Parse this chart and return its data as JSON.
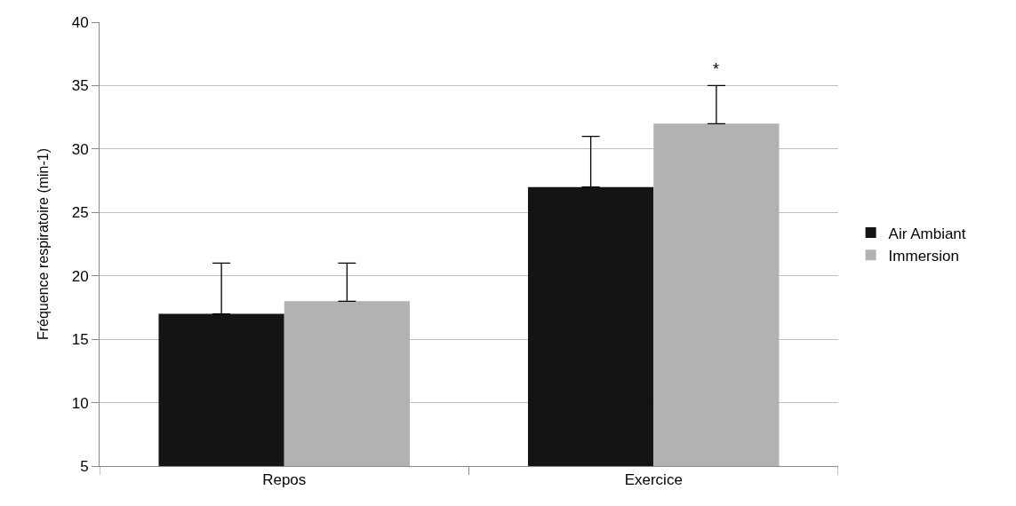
{
  "chart_data": {
    "type": "bar",
    "ylabel": "Fréquence respiratoire (min-1)",
    "categories": [
      "Repos",
      "Exercice"
    ],
    "series": [
      {
        "name": "Air Ambiant",
        "color": "#141414",
        "values": [
          17,
          27
        ],
        "errors": [
          [
            17,
            21
          ],
          [
            27,
            31
          ]
        ]
      },
      {
        "name": "Immersion",
        "color": "#b2b2b2",
        "values": [
          18,
          32
        ],
        "errors": [
          [
            18,
            21
          ],
          [
            32,
            35
          ]
        ]
      }
    ],
    "ylim": [
      5,
      40
    ],
    "yticks": [
      5,
      10,
      15,
      20,
      25,
      30,
      35,
      40
    ],
    "grid": "y",
    "legend": "right",
    "annotations": [
      "*"
    ]
  }
}
